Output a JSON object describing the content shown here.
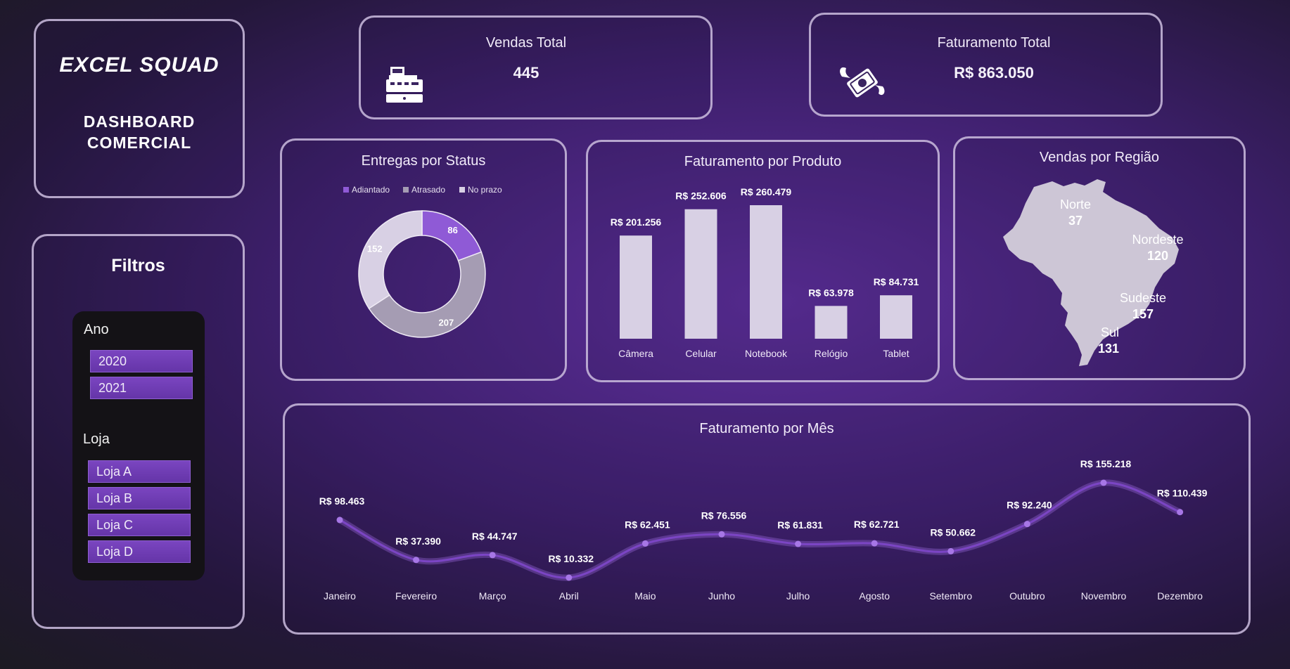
{
  "brand": {
    "logo_text": "EXCEL SQUAD",
    "title_line1": "DASHBOARD",
    "title_line2": "COMERCIAL"
  },
  "kpis": {
    "vendas": {
      "label": "Vendas Total",
      "value": "445",
      "icon": "cash-register-icon"
    },
    "faturamento": {
      "label": "Faturamento Total",
      "value": "R$ 863.050",
      "icon": "flying-money-icon"
    }
  },
  "filters": {
    "title": "Filtros",
    "ano_label": "Ano",
    "anos": [
      "2020",
      "2021"
    ],
    "loja_label": "Loja",
    "lojas": [
      "Loja A",
      "Loja B",
      "Loja C",
      "Loja D"
    ]
  },
  "colors": {
    "accent": "#8f5ad6",
    "light": "#d8d0e4",
    "gray": "#a59cb3",
    "line": "#7b45c4"
  },
  "chart_data": [
    {
      "type": "pie",
      "title": "Entregas por Status",
      "legend_position": "top",
      "categories": [
        "Adiantado",
        "Atrasado",
        "No prazo"
      ],
      "values": [
        86,
        207,
        152
      ],
      "labels": [
        "86",
        "207",
        "152"
      ]
    },
    {
      "type": "bar",
      "title": "Faturamento por Produto",
      "categories": [
        "Câmera",
        "Celular",
        "Notebook",
        "Relógio",
        "Tablet"
      ],
      "values": [
        201256,
        252606,
        260479,
        63978,
        84731
      ],
      "labels": [
        "R$ 201.256",
        "R$ 252.606",
        "R$ 260.479",
        "R$ 63.978",
        "R$ 84.731"
      ]
    },
    {
      "type": "table",
      "title": "Vendas por Região",
      "categories": [
        "Norte",
        "Nordeste",
        "Sudeste",
        "Sul"
      ],
      "values": [
        37,
        120,
        157,
        131
      ],
      "labels": [
        "37",
        "120",
        "157",
        "131"
      ]
    },
    {
      "type": "line",
      "title": "Faturamento por Mês",
      "categories": [
        "Janeiro",
        "Fevereiro",
        "Março",
        "Abril",
        "Maio",
        "Junho",
        "Julho",
        "Agosto",
        "Setembro",
        "Outubro",
        "Novembro",
        "Dezembro"
      ],
      "values": [
        98463,
        37390,
        44747,
        10332,
        62451,
        76556,
        61831,
        62721,
        50662,
        92240,
        155218,
        110439
      ],
      "labels": [
        "R$ 98.463",
        "R$ 37.390",
        "R$ 44.747",
        "R$ 10.332",
        "R$ 62.451",
        "R$ 76.556",
        "R$ 61.831",
        "R$ 62.721",
        "R$ 50.662",
        "R$ 92.240",
        "R$ 155.218",
        "R$ 110.439"
      ]
    }
  ]
}
